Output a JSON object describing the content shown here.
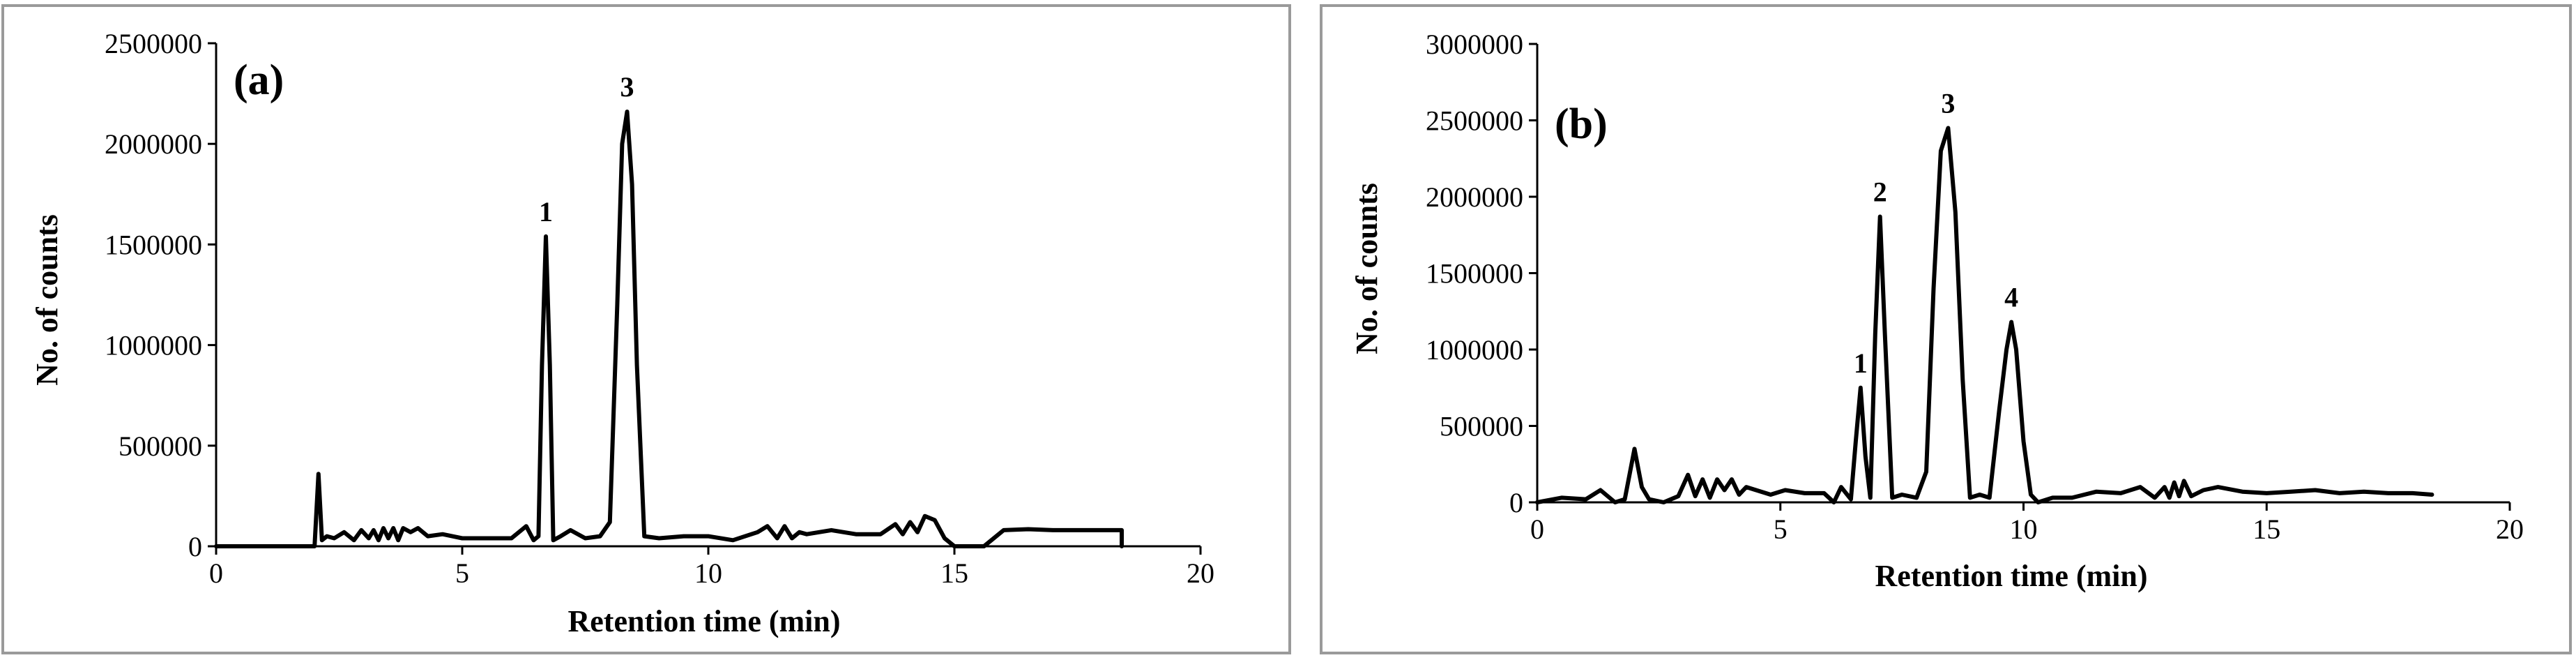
{
  "chart_data": [
    {
      "type": "line",
      "panel_label": "(a)",
      "xlabel": "Retention time (min)",
      "ylabel": "No. of counts",
      "xlim": [
        0,
        20
      ],
      "ylim": [
        0,
        2500000
      ],
      "xticks": [
        0,
        5,
        10,
        15,
        20
      ],
      "xtick_labels": [
        "0",
        "5",
        "10",
        "15",
        "20"
      ],
      "yticks": [
        0,
        500000,
        1000000,
        1500000,
        2000000,
        2500000
      ],
      "ytick_labels": [
        "0",
        "500000",
        "1000000",
        "1500000",
        "2000000",
        "2500000"
      ],
      "grid": false,
      "legend": "none",
      "peak_annotations": [
        {
          "label": "1",
          "x": 6.7,
          "y": 1540000
        },
        {
          "label": "3",
          "x": 8.35,
          "y": 2160000
        }
      ],
      "series": [
        {
          "color": "#000000",
          "x": [
            0,
            2.0,
            2.08,
            2.15,
            2.25,
            2.4,
            2.6,
            2.8,
            2.95,
            3.1,
            3.2,
            3.3,
            3.4,
            3.5,
            3.6,
            3.7,
            3.8,
            3.95,
            4.1,
            4.3,
            4.6,
            5.0,
            5.5,
            6.0,
            6.3,
            6.45,
            6.55,
            6.62,
            6.7,
            6.78,
            6.85,
            7.0,
            7.2,
            7.5,
            7.8,
            8.0,
            8.15,
            8.25,
            8.35,
            8.45,
            8.55,
            8.7,
            9.0,
            9.5,
            10.0,
            10.5,
            11.0,
            11.2,
            11.4,
            11.55,
            11.7,
            11.85,
            12.0,
            12.5,
            13.0,
            13.5,
            13.8,
            13.95,
            14.1,
            14.25,
            14.4,
            14.6,
            14.8,
            15.0,
            15.3,
            15.6,
            16.0,
            16.5,
            17.0,
            17.5,
            18.0,
            18.4,
            18.4
          ],
          "y": [
            0,
            0,
            360000,
            30000,
            50000,
            40000,
            70000,
            30000,
            80000,
            40000,
            80000,
            30000,
            90000,
            40000,
            90000,
            30000,
            90000,
            70000,
            90000,
            50000,
            60000,
            40000,
            40000,
            40000,
            100000,
            30000,
            50000,
            900000,
            1540000,
            900000,
            30000,
            50000,
            80000,
            40000,
            50000,
            120000,
            1200000,
            2000000,
            2160000,
            1800000,
            900000,
            50000,
            40000,
            50000,
            50000,
            30000,
            70000,
            100000,
            40000,
            100000,
            40000,
            70000,
            60000,
            80000,
            60000,
            60000,
            110000,
            60000,
            120000,
            70000,
            150000,
            130000,
            40000,
            0,
            -20000,
            0,
            80000,
            85000,
            80000,
            80000,
            80000,
            80000,
            0
          ]
        }
      ]
    },
    {
      "type": "line",
      "panel_label": "(b)",
      "xlabel": "Retention time (min)",
      "ylabel": "No. of counts",
      "xlim": [
        0,
        20
      ],
      "ylim": [
        0,
        3000000
      ],
      "xticks": [
        0,
        5,
        10,
        15,
        20
      ],
      "xtick_labels": [
        "0",
        "5",
        "10",
        "15",
        "20"
      ],
      "yticks": [
        0,
        500000,
        1000000,
        1500000,
        2000000,
        2500000,
        3000000
      ],
      "ytick_labels": [
        "0",
        "500000",
        "1000000",
        "1500000",
        "2000000",
        "2500000",
        "3000000"
      ],
      "grid": false,
      "legend": "none",
      "peak_annotations": [
        {
          "label": "1",
          "x": 6.65,
          "y": 750000
        },
        {
          "label": "2",
          "x": 7.05,
          "y": 1870000
        },
        {
          "label": "3",
          "x": 8.45,
          "y": 2450000
        },
        {
          "label": "4",
          "x": 9.75,
          "y": 1180000
        }
      ],
      "series": [
        {
          "color": "#000000",
          "x": [
            0,
            0.5,
            1.0,
            1.3,
            1.6,
            1.8,
            2.0,
            2.15,
            2.3,
            2.6,
            2.9,
            3.1,
            3.25,
            3.4,
            3.55,
            3.7,
            3.85,
            4.0,
            4.15,
            4.3,
            4.5,
            4.8,
            5.1,
            5.5,
            5.9,
            6.1,
            6.25,
            6.45,
            6.55,
            6.65,
            6.75,
            6.85,
            6.95,
            7.05,
            7.15,
            7.3,
            7.5,
            7.8,
            8.0,
            8.15,
            8.3,
            8.45,
            8.6,
            8.75,
            8.9,
            9.1,
            9.3,
            9.5,
            9.65,
            9.75,
            9.85,
            10.0,
            10.15,
            10.3,
            10.6,
            11.0,
            11.5,
            12.0,
            12.4,
            12.7,
            12.9,
            13.0,
            13.1,
            13.2,
            13.3,
            13.45,
            13.7,
            14.0,
            14.5,
            15.0,
            15.5,
            16.0,
            16.5,
            17.0,
            17.5,
            18.0,
            18.4
          ],
          "y": [
            0,
            30000,
            20000,
            80000,
            0,
            20000,
            350000,
            100000,
            20000,
            0,
            40000,
            180000,
            40000,
            150000,
            30000,
            150000,
            80000,
            150000,
            50000,
            100000,
            80000,
            50000,
            80000,
            60000,
            60000,
            0,
            100000,
            20000,
            400000,
            750000,
            300000,
            30000,
            1100000,
            1870000,
            1100000,
            30000,
            50000,
            30000,
            200000,
            1400000,
            2300000,
            2450000,
            1900000,
            800000,
            30000,
            50000,
            30000,
            600000,
            1000000,
            1180000,
            1000000,
            400000,
            50000,
            0,
            30000,
            30000,
            70000,
            60000,
            100000,
            30000,
            100000,
            30000,
            130000,
            40000,
            140000,
            40000,
            80000,
            100000,
            70000,
            60000,
            70000,
            80000,
            60000,
            70000,
            60000,
            60000,
            50000
          ]
        }
      ]
    }
  ]
}
